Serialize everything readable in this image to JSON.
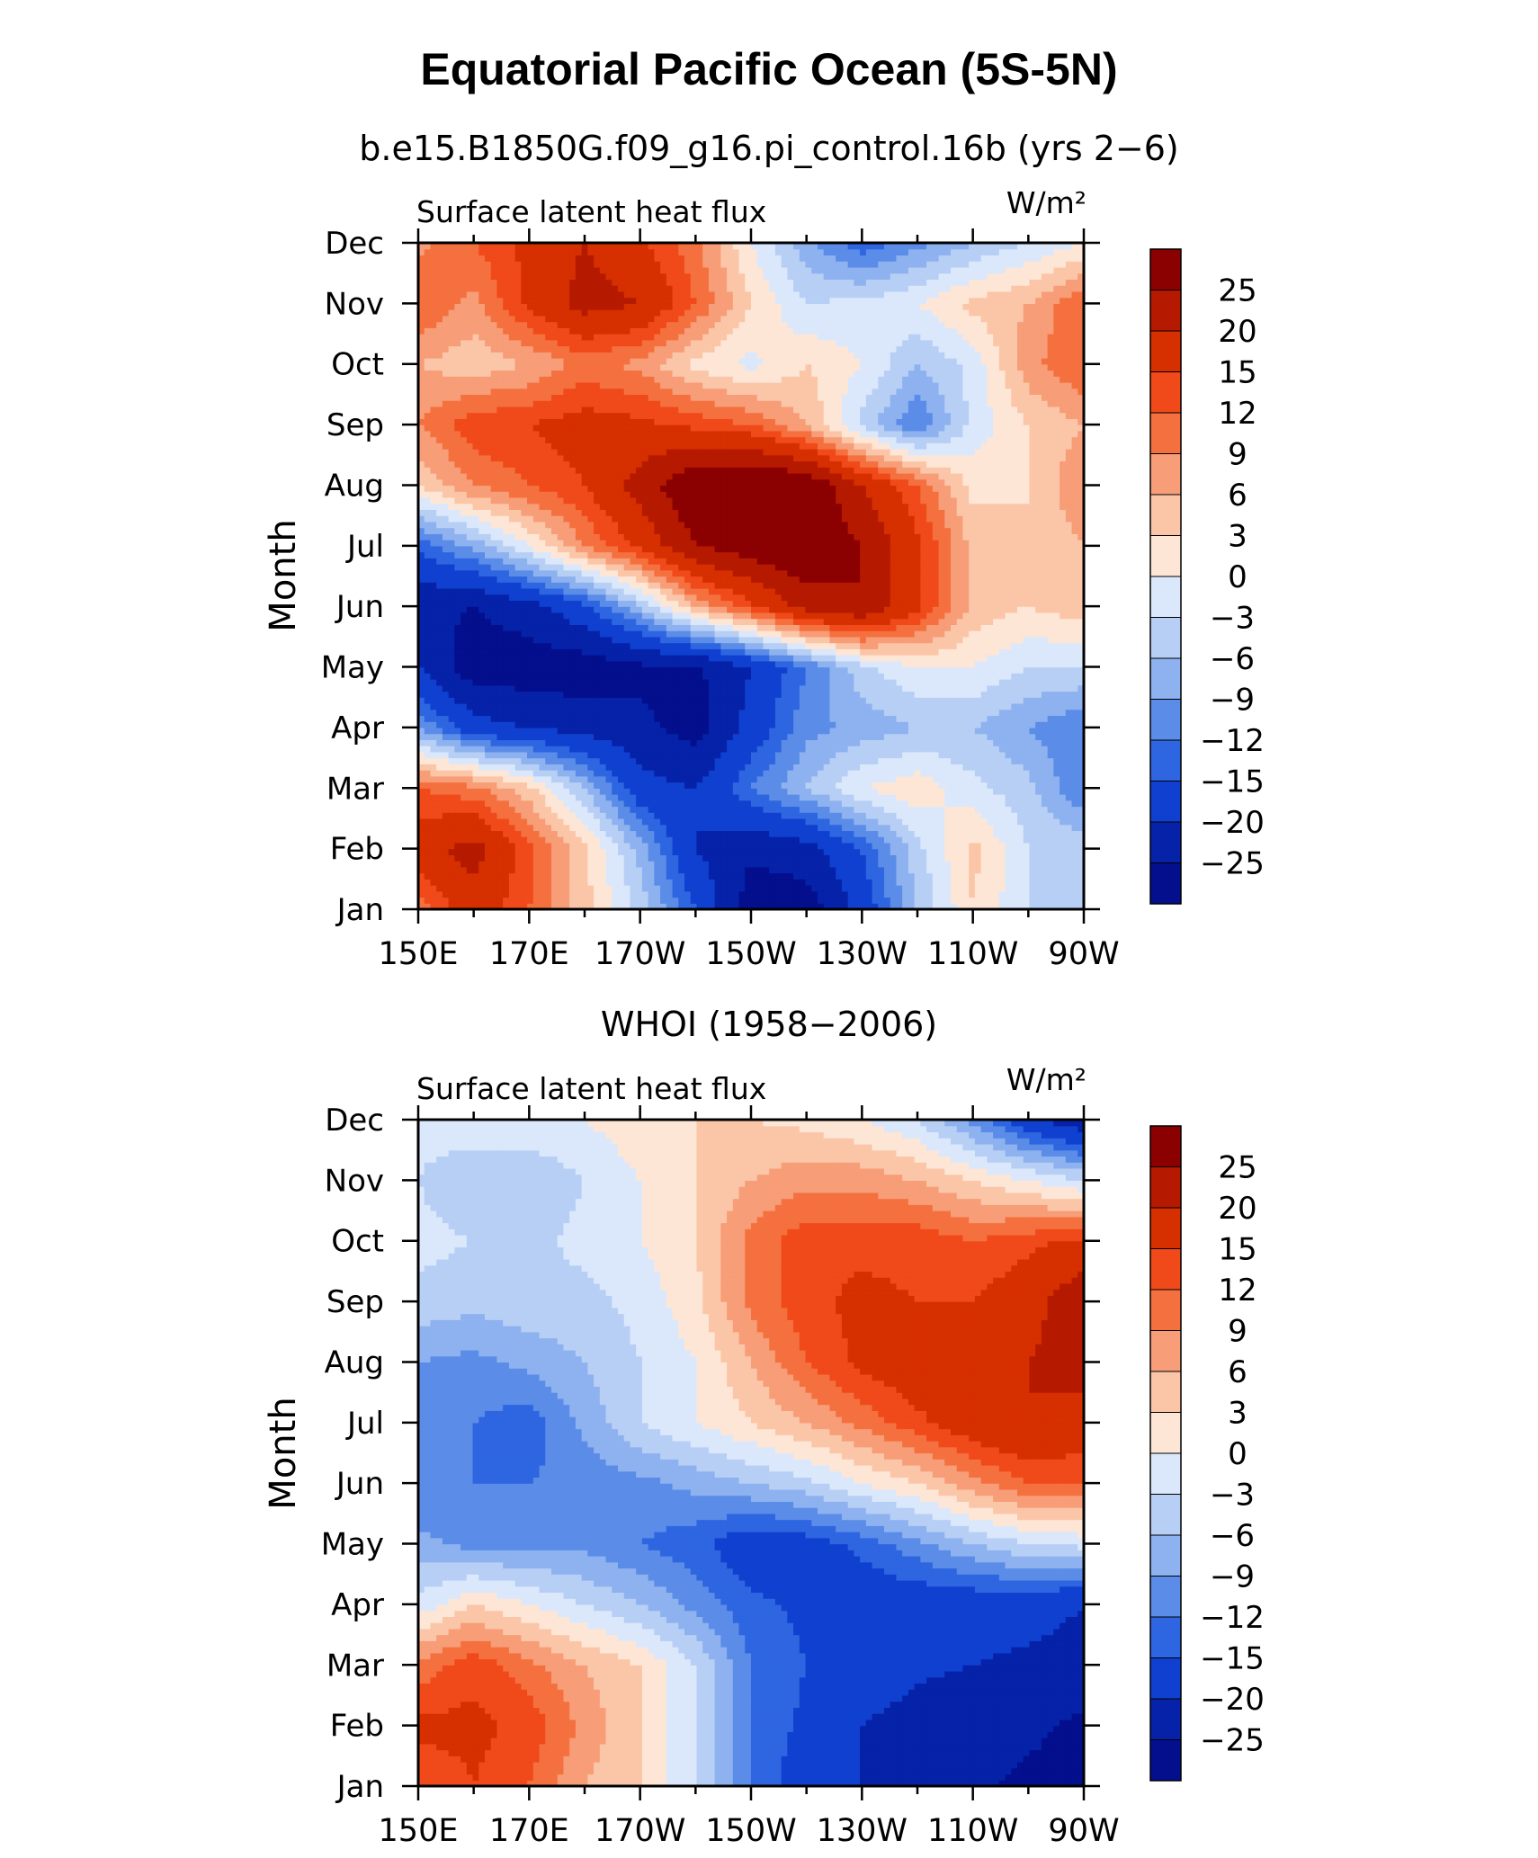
{
  "figure": {
    "title": "Equatorial Pacific Ocean (5S-5N)"
  },
  "legend": {
    "levels": [
      "25",
      "20",
      "15",
      "12",
      "9",
      "6",
      "3",
      "0",
      "−3",
      "−6",
      "−9",
      "−12",
      "−15",
      "−20",
      "−25"
    ],
    "colors": [
      "#8b0000",
      "#b51a00",
      "#d62f00",
      "#f0491a",
      "#f5703f",
      "#f79d77",
      "#fbc6a8",
      "#fde6d6",
      "#dbe8fb",
      "#b7cff5",
      "#8eb2ef",
      "#5a8ce8",
      "#2e65e0",
      "#1040cf",
      "#0522a8",
      "#030f8c"
    ]
  },
  "chart_data": [
    {
      "type": "heatmap",
      "subtitle": "b.e15.B1850G.f09_g16.pi_control.16b (yrs 2−6)",
      "panel_label": "Surface latent heat flux",
      "units": "W/m²",
      "xlabel": "",
      "ylabel": "Month",
      "x_ticks": [
        "150E",
        "170E",
        "170W",
        "150W",
        "130W",
        "110W",
        "90W"
      ],
      "y_ticks": [
        "Jan",
        "Feb",
        "Mar",
        "Apr",
        "May",
        "Jun",
        "Jul",
        "Aug",
        "Sep",
        "Oct",
        "Nov",
        "Dec"
      ],
      "xlim": [
        150,
        270
      ],
      "x_values": [
        150,
        160,
        170,
        180,
        190,
        200,
        210,
        220,
        230,
        240,
        250,
        260,
        270
      ],
      "y_values": [
        "Jan",
        "Feb",
        "Mar",
        "Apr",
        "May",
        "Jun",
        "Jul",
        "Aug",
        "Sep",
        "Oct",
        "Nov",
        "Dec"
      ],
      "z_values": [
        [
          10,
          18,
          12,
          4,
          -4,
          -15,
          -28,
          -28,
          -18,
          -6,
          3,
          -3,
          -4
        ],
        [
          18,
          22,
          13,
          4,
          -7,
          -20,
          -24,
          -22,
          -15,
          -4,
          4,
          -3,
          -4
        ],
        [
          12,
          10,
          4,
          -6,
          -18,
          -20,
          -12,
          -6,
          0,
          2,
          -2,
          -5,
          -12
        ],
        [
          -9,
          -18,
          -20,
          -22,
          -24,
          -27,
          -18,
          -10,
          -8,
          -6,
          -6,
          -9,
          -12
        ],
        [
          -20,
          -28,
          -28,
          -28,
          -26,
          -26,
          -20,
          -12,
          -4,
          0,
          0,
          -3,
          -3
        ],
        [
          -24,
          -25,
          -22,
          -16,
          -6,
          6,
          14,
          22,
          25,
          16,
          5,
          3,
          5
        ],
        [
          -14,
          -8,
          0,
          9,
          16,
          25,
          28,
          30,
          25,
          16,
          5,
          3,
          6
        ],
        [
          3,
          9,
          12,
          15,
          22,
          30,
          32,
          30,
          20,
          12,
          2,
          3,
          9
        ],
        [
          9,
          14,
          15,
          17,
          16,
          14,
          12,
          6,
          -4,
          -12,
          -2,
          3,
          6
        ],
        [
          6,
          4,
          6,
          10,
          8,
          2,
          -1,
          3,
          0,
          -6,
          -2,
          8,
          12
        ],
        [
          12,
          8,
          16,
          22,
          20,
          12,
          3,
          -3,
          -2,
          0,
          4,
          6,
          12
        ],
        [
          8,
          12,
          16,
          20,
          16,
          10,
          0,
          -8,
          -14,
          -10,
          -6,
          -3,
          0
        ]
      ]
    },
    {
      "type": "heatmap",
      "subtitle": "WHOI (1958−2006)",
      "panel_label": "Surface latent heat flux",
      "units": "W/m²",
      "xlabel": "",
      "ylabel": "Month",
      "x_ticks": [
        "150E",
        "170E",
        "170W",
        "150W",
        "130W",
        "110W",
        "90W"
      ],
      "y_ticks": [
        "Jan",
        "Feb",
        "Mar",
        "Apr",
        "May",
        "Jun",
        "Jul",
        "Aug",
        "Sep",
        "Oct",
        "Nov",
        "Dec"
      ],
      "xlim": [
        150,
        270
      ],
      "x_values": [
        150,
        160,
        170,
        180,
        190,
        200,
        210,
        220,
        230,
        240,
        250,
        260,
        270
      ],
      "y_values": [
        "Jan",
        "Feb",
        "Mar",
        "Apr",
        "May",
        "Jun",
        "Jul",
        "Aug",
        "Sep",
        "Oct",
        "Nov",
        "Dec"
      ],
      "z_values": [
        [
          12,
          15,
          12,
          6,
          3,
          -3,
          -12,
          -18,
          -20,
          -22,
          -24,
          -26,
          -27
        ],
        [
          16,
          16,
          14,
          8,
          3,
          -3,
          -12,
          -16,
          -20,
          -22,
          -24,
          -24,
          -26
        ],
        [
          10,
          14,
          10,
          6,
          3,
          -3,
          -12,
          -15,
          -17,
          -19,
          -20,
          -21,
          -22
        ],
        [
          -2,
          3,
          0,
          -3,
          -6,
          -10,
          -14,
          -16,
          -18,
          -18,
          -18,
          -18,
          -20
        ],
        [
          -8,
          -10,
          -10,
          -10,
          -12,
          -14,
          -18,
          -17,
          -14,
          -10,
          -6,
          -3,
          -2
        ],
        [
          -12,
          -12,
          -12,
          -11,
          -10,
          -8,
          -6,
          -4,
          0,
          3,
          8,
          12,
          12
        ],
        [
          -10,
          -12,
          -14,
          -8,
          -3,
          0,
          3,
          6,
          10,
          14,
          18,
          20,
          18
        ],
        [
          -9,
          -10,
          -8,
          -6,
          -3,
          0,
          6,
          12,
          16,
          18,
          17,
          20,
          22
        ],
        [
          -4,
          -5,
          -4,
          -4,
          -2,
          2,
          10,
          14,
          16,
          15,
          15,
          18,
          24
        ],
        [
          -2,
          -3,
          -4,
          -2,
          0,
          3,
          10,
          14,
          14,
          14,
          12,
          14,
          16
        ],
        [
          -3,
          -6,
          -6,
          -3,
          0,
          3,
          6,
          8,
          8,
          6,
          3,
          0,
          -3
        ],
        [
          -2,
          0,
          0,
          0,
          2,
          3,
          3,
          2,
          0,
          -3,
          -10,
          -18,
          -24
        ]
      ]
    }
  ]
}
